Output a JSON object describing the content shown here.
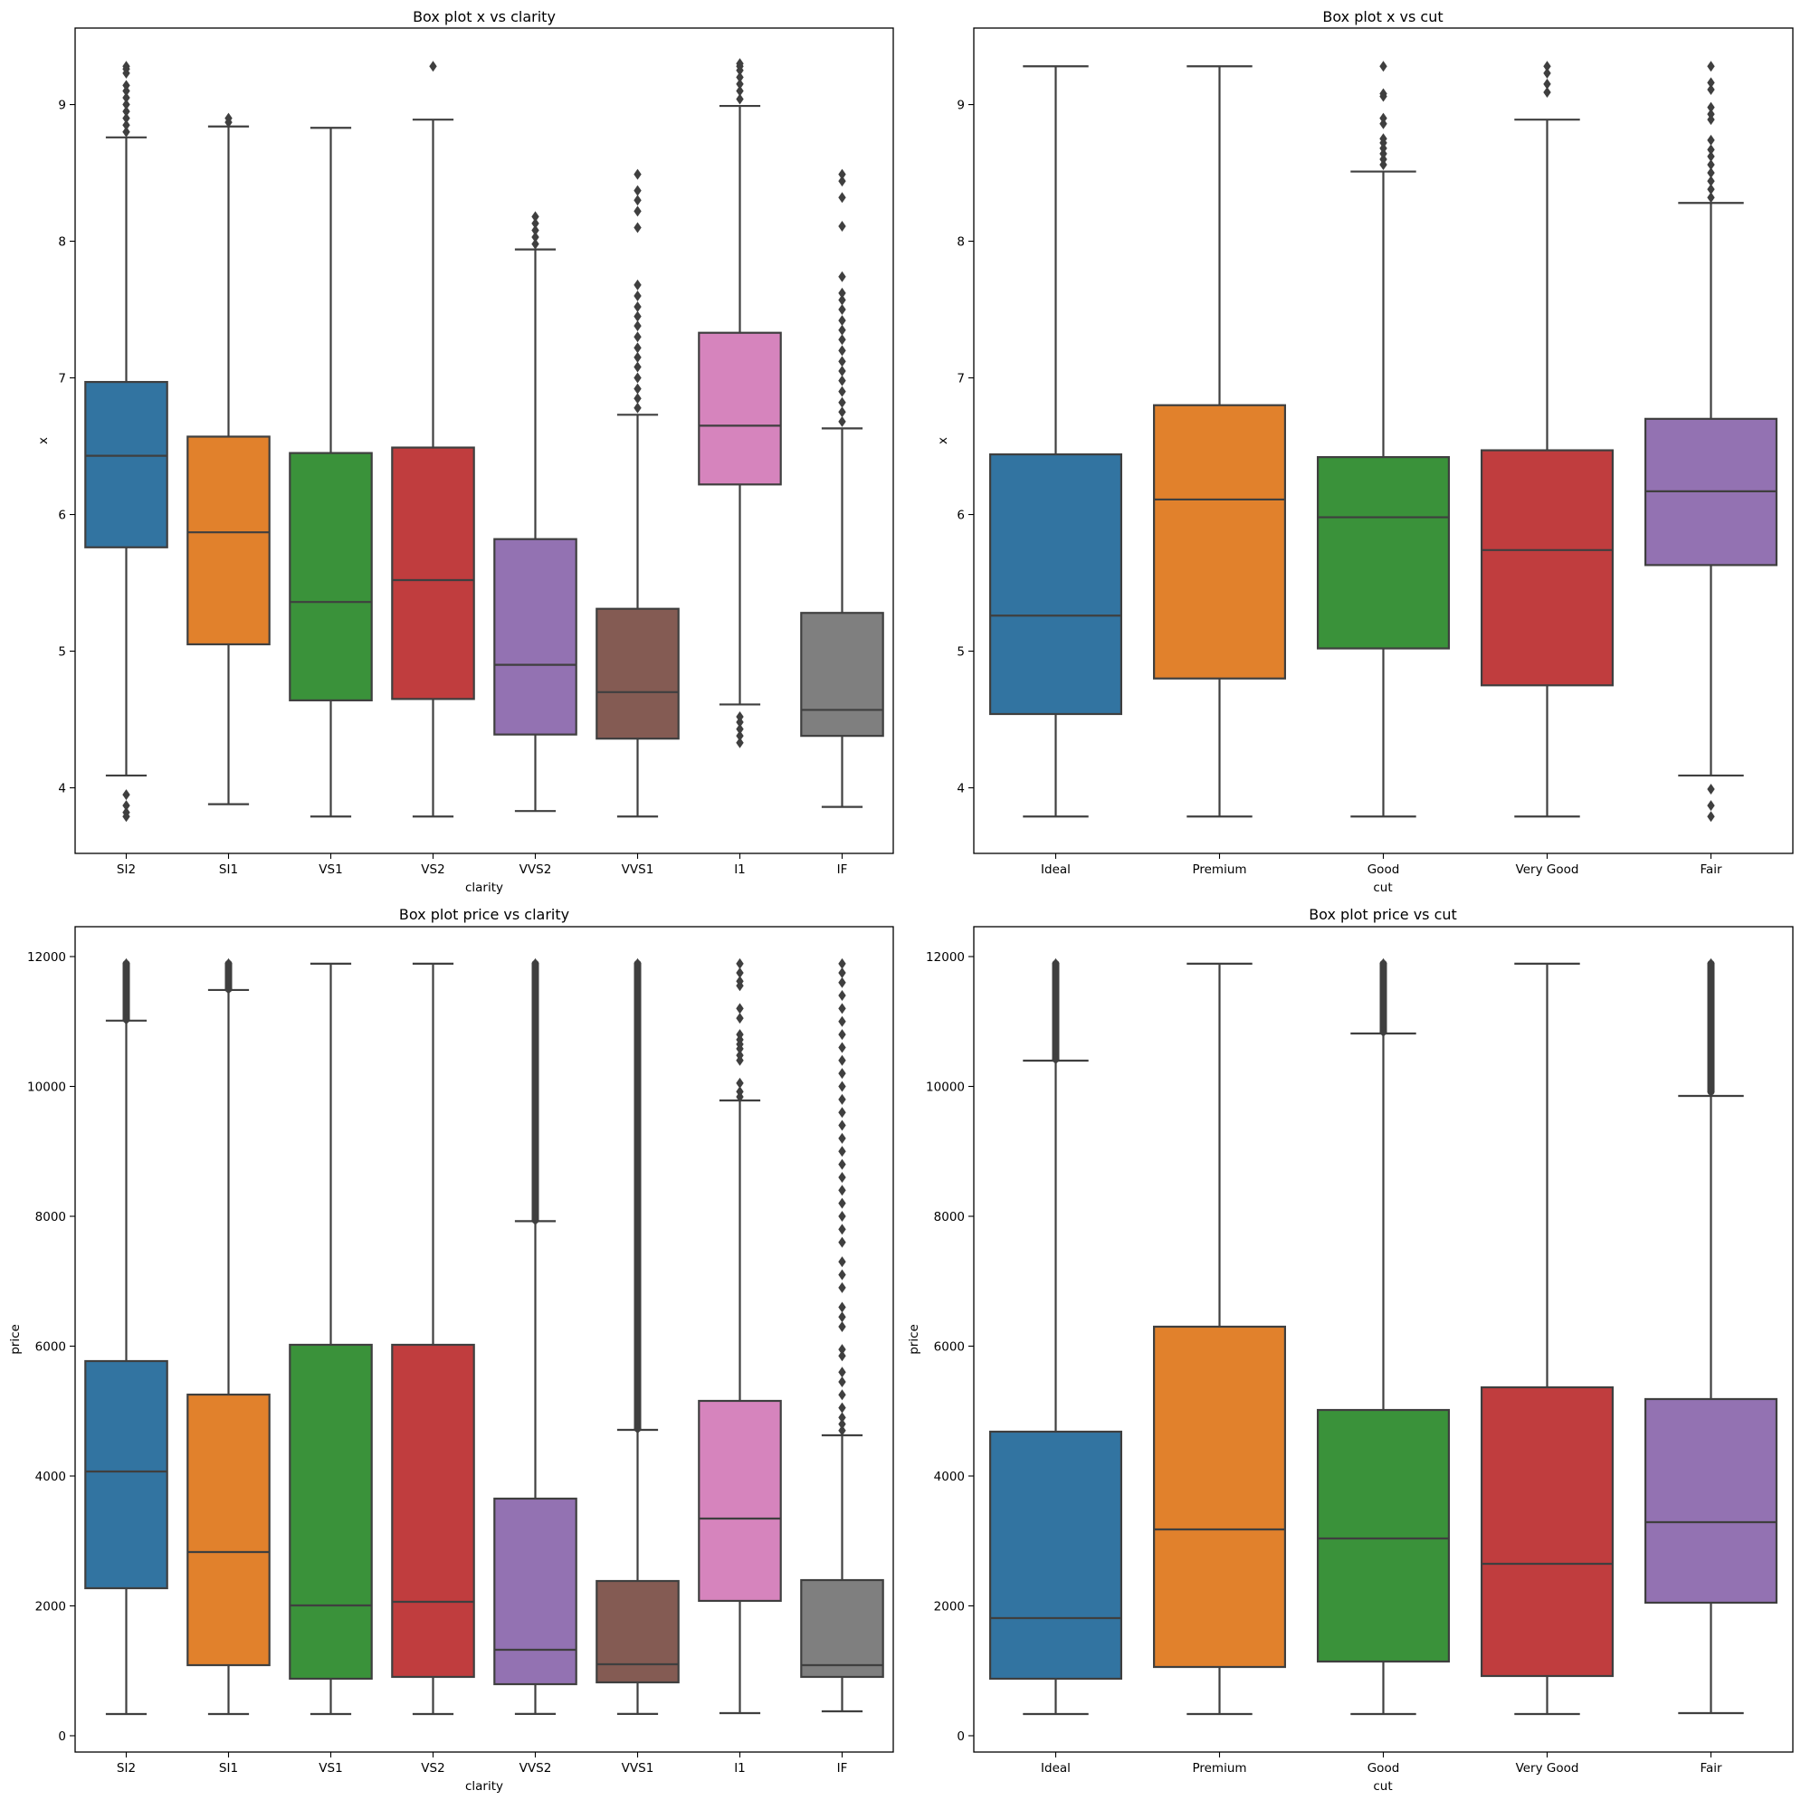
{
  "figure": {
    "box_edge_color": "#3f3f3f",
    "outlier_color": "#3f3f3f"
  },
  "chart_data": [
    {
      "id": "x_vs_clarity",
      "type": "box",
      "title": "Box plot x vs clarity",
      "xlabel": "clarity",
      "ylabel": "x",
      "ylim": [
        3.52,
        9.56
      ],
      "yticks": [
        4,
        5,
        6,
        7,
        8,
        9
      ],
      "ytick_labels": [
        "4",
        "5",
        "6",
        "7",
        "8",
        "9"
      ],
      "grid": false,
      "legend": "none",
      "categories": [
        "SI2",
        "SI1",
        "VS1",
        "VS2",
        "VVS2",
        "VVS1",
        "I1",
        "IF"
      ],
      "colors": [
        "#3274a1",
        "#e1812c",
        "#3a923a",
        "#c03d3e",
        "#9372b2",
        "#845b53",
        "#d684bd",
        "#7f7f7f"
      ],
      "boxes": [
        {
          "category": "SI2",
          "whisker_low": 4.09,
          "q1": 5.76,
          "median": 6.43,
          "q3": 6.97,
          "whisker_high": 8.76,
          "outliers": [
            3.95,
            3.87,
            3.82,
            3.79,
            8.8,
            8.85,
            8.9,
            8.95,
            9.0,
            9.05,
            9.1,
            9.14,
            9.23,
            9.26,
            9.28
          ]
        },
        {
          "category": "SI1",
          "whisker_low": 3.88,
          "q1": 5.05,
          "median": 5.87,
          "q3": 6.57,
          "whisker_high": 8.84,
          "outliers": [
            8.87,
            8.9
          ]
        },
        {
          "category": "VS1",
          "whisker_low": 3.79,
          "q1": 4.64,
          "median": 5.36,
          "q3": 6.45,
          "whisker_high": 8.83,
          "outliers": []
        },
        {
          "category": "VS2",
          "whisker_low": 3.79,
          "q1": 4.65,
          "median": 5.52,
          "q3": 6.49,
          "whisker_high": 8.89,
          "outliers": [
            9.28
          ]
        },
        {
          "category": "VVS2",
          "whisker_low": 3.83,
          "q1": 4.39,
          "median": 4.9,
          "q3": 5.82,
          "whisker_high": 7.94,
          "outliers": [
            7.98,
            8.03,
            8.08,
            8.13,
            8.18
          ]
        },
        {
          "category": "VVS1",
          "whisker_low": 3.79,
          "q1": 4.36,
          "median": 4.7,
          "q3": 5.31,
          "whisker_high": 6.73,
          "outliers": [
            6.78,
            6.85,
            6.92,
            7.0,
            7.08,
            7.15,
            7.22,
            7.3,
            7.38,
            7.45,
            7.52,
            7.6,
            7.68,
            8.1,
            8.22,
            8.3,
            8.37,
            8.49
          ]
        },
        {
          "category": "I1",
          "whisker_low": 4.61,
          "q1": 6.22,
          "median": 6.65,
          "q3": 7.33,
          "whisker_high": 8.99,
          "outliers": [
            4.33,
            4.38,
            4.43,
            4.48,
            4.52,
            9.04,
            9.1,
            9.15,
            9.2,
            9.25,
            9.28,
            9.3
          ]
        },
        {
          "category": "IF",
          "whisker_low": 3.86,
          "q1": 4.38,
          "median": 4.57,
          "q3": 5.28,
          "whisker_high": 6.63,
          "outliers": [
            6.68,
            6.75,
            6.82,
            6.9,
            6.98,
            7.05,
            7.12,
            7.2,
            7.28,
            7.35,
            7.42,
            7.5,
            7.57,
            7.62,
            7.74,
            8.11,
            8.32,
            8.44,
            8.49
          ]
        }
      ]
    },
    {
      "id": "x_vs_cut",
      "type": "box",
      "title": "Box plot x vs cut",
      "xlabel": "cut",
      "ylabel": "x",
      "ylim": [
        3.52,
        9.56
      ],
      "yticks": [
        4,
        5,
        6,
        7,
        8,
        9
      ],
      "ytick_labels": [
        "4",
        "5",
        "6",
        "7",
        "8",
        "9"
      ],
      "grid": false,
      "legend": "none",
      "categories": [
        "Ideal",
        "Premium",
        "Good",
        "Very Good",
        "Fair"
      ],
      "colors": [
        "#3274a1",
        "#e1812c",
        "#3a923a",
        "#c03d3e",
        "#9372b2"
      ],
      "boxes": [
        {
          "category": "Ideal",
          "whisker_low": 3.79,
          "q1": 4.54,
          "median": 5.26,
          "q3": 6.44,
          "whisker_high": 9.28,
          "outliers": []
        },
        {
          "category": "Premium",
          "whisker_low": 3.79,
          "q1": 4.8,
          "median": 6.11,
          "q3": 6.8,
          "whisker_high": 9.28,
          "outliers": []
        },
        {
          "category": "Good",
          "whisker_low": 3.79,
          "q1": 5.02,
          "median": 5.98,
          "q3": 6.42,
          "whisker_high": 8.51,
          "outliers": [
            8.56,
            8.6,
            8.64,
            8.68,
            8.72,
            8.75,
            8.86,
            8.9,
            9.06,
            9.08,
            9.28
          ]
        },
        {
          "category": "Very Good",
          "whisker_low": 3.79,
          "q1": 4.75,
          "median": 5.74,
          "q3": 6.47,
          "whisker_high": 8.89,
          "outliers": [
            9.09,
            9.15,
            9.23,
            9.28
          ]
        },
        {
          "category": "Fair",
          "whisker_low": 4.09,
          "q1": 5.63,
          "median": 6.17,
          "q3": 6.7,
          "whisker_high": 8.28,
          "outliers": [
            3.79,
            3.87,
            3.99,
            8.32,
            8.38,
            8.44,
            8.5,
            8.56,
            8.62,
            8.67,
            8.74,
            8.89,
            8.93,
            8.98,
            9.11,
            9.16,
            9.28
          ]
        }
      ]
    },
    {
      "id": "price_vs_clarity",
      "type": "box",
      "title": "Box plot price vs clarity",
      "xlabel": "clarity",
      "ylabel": "price",
      "ylim": [
        -251,
        12460
      ],
      "yticks": [
        0,
        2000,
        4000,
        6000,
        8000,
        10000,
        12000
      ],
      "ytick_labels": [
        "0",
        "2000",
        "4000",
        "6000",
        "8000",
        "10000",
        "12000"
      ],
      "grid": false,
      "legend": "none",
      "categories": [
        "SI2",
        "SI1",
        "VS1",
        "VS2",
        "VVS2",
        "VVS1",
        "I1",
        "IF"
      ],
      "colors": [
        "#3274a1",
        "#e1812c",
        "#3a923a",
        "#c03d3e",
        "#9372b2",
        "#845b53",
        "#d684bd",
        "#7f7f7f"
      ],
      "boxes": [
        {
          "category": "SI2",
          "whisker_low": 334,
          "q1": 2272,
          "median": 4070,
          "q3": 5770,
          "whisker_high": 11013,
          "outliers_range": [
            11030,
            11890
          ]
        },
        {
          "category": "SI1",
          "whisker_low": 334,
          "q1": 1087,
          "median": 2829,
          "q3": 5254,
          "whisker_high": 11485,
          "outliers_range": [
            11500,
            11890
          ]
        },
        {
          "category": "VS1",
          "whisker_low": 334,
          "q1": 878,
          "median": 2007,
          "q3": 6021,
          "whisker_high": 11890,
          "outliers_range": null
        },
        {
          "category": "VS2",
          "whisker_low": 334,
          "q1": 906,
          "median": 2063,
          "q3": 6021,
          "whisker_high": 11890,
          "outliers_range": null
        },
        {
          "category": "VVS2",
          "whisker_low": 336,
          "q1": 794,
          "median": 1324,
          "q3": 3652,
          "whisker_high": 7925,
          "outliers_range": [
            7940,
            11890
          ]
        },
        {
          "category": "VVS1",
          "whisker_low": 336,
          "q1": 822,
          "median": 1101,
          "q3": 2383,
          "whisker_high": 4711,
          "outliers_range": [
            4730,
            11890
          ]
        },
        {
          "category": "I1",
          "whisker_low": 348,
          "q1": 2077,
          "median": 3345,
          "q3": 5157,
          "whisker_high": 9784,
          "outliers": [
            9840,
            9920,
            10050,
            10400,
            10480,
            10580,
            10650,
            10720,
            10800,
            11050,
            11200,
            11550,
            11620,
            11750,
            11890
          ]
        },
        {
          "category": "IF",
          "whisker_low": 376,
          "q1": 906,
          "median": 1087,
          "q3": 2397,
          "whisker_high": 4627,
          "outliers": [
            4700,
            4800,
            4900,
            5050,
            5250,
            5450,
            5600,
            5850,
            5950,
            6300,
            6450,
            6600,
            6900,
            7100,
            7300,
            7600,
            7800,
            8000,
            8200,
            8400,
            8600,
            8800,
            9000,
            9200,
            9400,
            9600,
            9800,
            10000,
            10200,
            10400,
            10600,
            10800,
            11000,
            11200,
            11400,
            11600,
            11750,
            11890
          ]
        }
      ]
    },
    {
      "id": "price_vs_cut",
      "type": "box",
      "title": "Box plot price vs cut",
      "xlabel": "cut",
      "ylabel": "price",
      "ylim": [
        -251,
        12460
      ],
      "yticks": [
        0,
        2000,
        4000,
        6000,
        8000,
        10000,
        12000
      ],
      "ytick_labels": [
        "0",
        "2000",
        "4000",
        "6000",
        "8000",
        "10000",
        "12000"
      ],
      "grid": false,
      "legend": "none",
      "categories": [
        "Ideal",
        "Premium",
        "Good",
        "Very Good",
        "Fair"
      ],
      "colors": [
        "#3274a1",
        "#e1812c",
        "#3a923a",
        "#c03d3e",
        "#9372b2"
      ],
      "boxes": [
        {
          "category": "Ideal",
          "whisker_low": 334,
          "q1": 878,
          "median": 1812,
          "q3": 4683,
          "whisker_high": 10397,
          "outliers_range": [
            10420,
            11890
          ]
        },
        {
          "category": "Premium",
          "whisker_low": 334,
          "q1": 1059,
          "median": 3178,
          "q3": 6300,
          "whisker_high": 11890,
          "outliers_range": null
        },
        {
          "category": "Good",
          "whisker_low": 334,
          "q1": 1143,
          "median": 3038,
          "q3": 5017,
          "whisker_high": 10815,
          "outliers_range": [
            10840,
            11890
          ]
        },
        {
          "category": "Very Good",
          "whisker_low": 334,
          "q1": 920,
          "median": 2648,
          "q3": 5366,
          "whisker_high": 11890,
          "outliers_range": null
        },
        {
          "category": "Fair",
          "whisker_low": 348,
          "q1": 2049,
          "median": 3289,
          "q3": 5185,
          "whisker_high": 9854,
          "outliers_range": [
            9920,
            11890
          ]
        }
      ]
    }
  ]
}
